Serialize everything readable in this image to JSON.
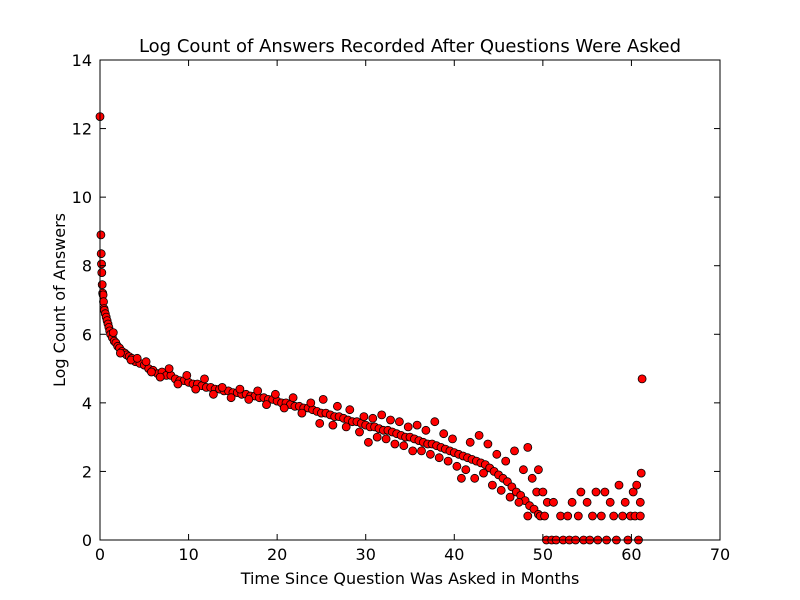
{
  "chart_data": {
    "type": "scatter",
    "title": "Log Count of Answers Recorded After Questions Were Asked",
    "xlabel": "Time Since Question Was Asked in Months",
    "ylabel": "Log Count of Answers",
    "xlim": [
      0,
      70
    ],
    "ylim": [
      0,
      14
    ],
    "xticks": [
      0,
      10,
      20,
      30,
      40,
      50,
      60,
      70
    ],
    "yticks": [
      0,
      2,
      4,
      6,
      8,
      10,
      12,
      14
    ],
    "grid": false,
    "legend": "none",
    "marker_color": "#ff0000",
    "marker_edge_color": "#000000",
    "series": [
      {
        "points": [
          [
            0.0,
            12.35
          ],
          [
            0.1,
            8.9
          ],
          [
            0.13,
            8.35
          ],
          [
            0.17,
            8.05
          ],
          [
            0.2,
            7.8
          ],
          [
            0.25,
            7.45
          ],
          [
            0.3,
            7.2
          ],
          [
            0.35,
            7.15
          ],
          [
            0.4,
            6.95
          ],
          [
            0.45,
            6.75
          ],
          [
            0.5,
            6.7
          ],
          [
            0.6,
            6.6
          ],
          [
            0.7,
            6.5
          ],
          [
            0.8,
            6.4
          ],
          [
            0.9,
            6.3
          ],
          [
            1.0,
            6.2
          ],
          [
            1.1,
            6.1
          ],
          [
            1.2,
            6.0
          ],
          [
            1.4,
            5.9
          ],
          [
            1.6,
            5.8
          ],
          [
            1.8,
            5.75
          ],
          [
            2.0,
            5.65
          ],
          [
            2.2,
            5.6
          ],
          [
            2.5,
            5.5
          ],
          [
            2.8,
            5.45
          ],
          [
            3.0,
            5.4
          ],
          [
            3.3,
            5.35
          ],
          [
            3.6,
            5.3
          ],
          [
            4.0,
            5.2
          ],
          [
            4.5,
            5.15
          ],
          [
            5.0,
            5.1
          ],
          [
            5.5,
            5.0
          ],
          [
            6.0,
            4.95
          ],
          [
            6.5,
            4.85
          ],
          [
            7.0,
            4.9
          ],
          [
            7.5,
            4.8
          ],
          [
            8.0,
            4.8
          ],
          [
            8.5,
            4.7
          ],
          [
            9.0,
            4.65
          ],
          [
            9.5,
            4.65
          ],
          [
            10.0,
            4.6
          ],
          [
            10.5,
            4.55
          ],
          [
            11.0,
            4.55
          ],
          [
            11.5,
            4.5
          ],
          [
            12.0,
            4.45
          ],
          [
            12.5,
            4.45
          ],
          [
            13.0,
            4.4
          ],
          [
            13.5,
            4.4
          ],
          [
            14.0,
            4.35
          ],
          [
            14.5,
            4.35
          ],
          [
            15.0,
            4.3
          ],
          [
            15.5,
            4.3
          ],
          [
            16.0,
            4.25
          ],
          [
            16.5,
            4.25
          ],
          [
            17.0,
            4.2
          ],
          [
            17.5,
            4.2
          ],
          [
            18.0,
            4.15
          ],
          [
            18.5,
            4.15
          ],
          [
            19.0,
            4.1
          ],
          [
            19.5,
            4.1
          ],
          [
            20.0,
            4.05
          ],
          [
            20.5,
            4.0
          ],
          [
            21.0,
            4.0
          ],
          [
            21.5,
            3.95
          ],
          [
            22.0,
            3.9
          ],
          [
            22.5,
            3.9
          ],
          [
            23.0,
            3.85
          ],
          [
            23.5,
            3.85
          ],
          [
            24.0,
            3.8
          ],
          [
            24.5,
            3.75
          ],
          [
            25.0,
            3.7
          ],
          [
            25.5,
            3.7
          ],
          [
            26.0,
            3.65
          ],
          [
            26.5,
            3.6
          ],
          [
            27.0,
            3.6
          ],
          [
            27.5,
            3.55
          ],
          [
            28.0,
            3.5
          ],
          [
            28.5,
            3.45
          ],
          [
            29.0,
            3.45
          ],
          [
            29.5,
            3.4
          ],
          [
            30.0,
            3.35
          ],
          [
            30.5,
            3.3
          ],
          [
            31.0,
            3.3
          ],
          [
            31.5,
            3.25
          ],
          [
            32.0,
            3.2
          ],
          [
            32.5,
            3.2
          ],
          [
            33.0,
            3.15
          ],
          [
            33.5,
            3.1
          ],
          [
            34.0,
            3.05
          ],
          [
            34.5,
            3.0
          ],
          [
            35.0,
            3.0
          ],
          [
            35.5,
            2.95
          ],
          [
            36.0,
            2.9
          ],
          [
            36.5,
            2.85
          ],
          [
            37.0,
            2.8
          ],
          [
            37.5,
            2.8
          ],
          [
            38.0,
            2.75
          ],
          [
            38.5,
            2.7
          ],
          [
            39.0,
            2.65
          ],
          [
            39.5,
            2.6
          ],
          [
            40.0,
            2.55
          ],
          [
            40.5,
            2.5
          ],
          [
            41.0,
            2.45
          ],
          [
            41.5,
            2.4
          ],
          [
            42.0,
            2.35
          ],
          [
            42.5,
            2.3
          ],
          [
            43.0,
            2.25
          ],
          [
            43.5,
            2.2
          ],
          [
            44.0,
            2.1
          ],
          [
            44.5,
            2.0
          ],
          [
            45.0,
            1.9
          ],
          [
            45.5,
            1.8
          ],
          [
            46.0,
            1.7
          ],
          [
            46.5,
            1.55
          ],
          [
            47.0,
            1.4
          ],
          [
            47.5,
            1.3
          ],
          [
            48.0,
            1.15
          ],
          [
            48.5,
            1.0
          ],
          [
            49.0,
            0.9
          ],
          [
            49.5,
            0.75
          ],
          [
            1.5,
            6.05
          ],
          [
            2.3,
            5.45
          ],
          [
            3.5,
            5.25
          ],
          [
            4.2,
            5.3
          ],
          [
            5.2,
            5.2
          ],
          [
            5.8,
            4.9
          ],
          [
            6.8,
            4.75
          ],
          [
            7.8,
            5.0
          ],
          [
            8.8,
            4.55
          ],
          [
            9.8,
            4.8
          ],
          [
            10.8,
            4.4
          ],
          [
            11.8,
            4.7
          ],
          [
            12.8,
            4.25
          ],
          [
            13.8,
            4.45
          ],
          [
            14.8,
            4.15
          ],
          [
            15.8,
            4.4
          ],
          [
            16.8,
            4.1
          ],
          [
            17.8,
            4.35
          ],
          [
            18.8,
            3.95
          ],
          [
            19.8,
            4.25
          ],
          [
            20.8,
            3.85
          ],
          [
            21.8,
            4.15
          ],
          [
            22.8,
            3.7
          ],
          [
            23.8,
            4.0
          ],
          [
            24.8,
            3.4
          ],
          [
            25.2,
            4.1
          ],
          [
            26.3,
            3.35
          ],
          [
            26.8,
            3.9
          ],
          [
            27.8,
            3.3
          ],
          [
            28.2,
            3.8
          ],
          [
            29.3,
            3.15
          ],
          [
            29.8,
            3.6
          ],
          [
            30.3,
            2.85
          ],
          [
            30.8,
            3.55
          ],
          [
            31.3,
            3.0
          ],
          [
            31.8,
            3.65
          ],
          [
            32.3,
            2.95
          ],
          [
            32.8,
            3.5
          ],
          [
            33.3,
            2.8
          ],
          [
            33.8,
            3.45
          ],
          [
            34.3,
            2.75
          ],
          [
            34.8,
            3.3
          ],
          [
            35.3,
            2.6
          ],
          [
            35.8,
            3.35
          ],
          [
            36.3,
            2.6
          ],
          [
            36.8,
            3.2
          ],
          [
            37.3,
            2.5
          ],
          [
            37.8,
            3.45
          ],
          [
            38.3,
            2.4
          ],
          [
            38.8,
            3.1
          ],
          [
            39.3,
            2.3
          ],
          [
            39.8,
            2.95
          ],
          [
            40.3,
            2.15
          ],
          [
            40.8,
            1.8
          ],
          [
            41.3,
            2.05
          ],
          [
            41.8,
            2.85
          ],
          [
            42.3,
            1.8
          ],
          [
            42.8,
            3.05
          ],
          [
            43.3,
            1.95
          ],
          [
            43.8,
            2.8
          ],
          [
            44.3,
            1.6
          ],
          [
            44.8,
            2.5
          ],
          [
            45.3,
            1.45
          ],
          [
            45.8,
            2.3
          ],
          [
            46.3,
            1.25
          ],
          [
            46.8,
            2.6
          ],
          [
            47.3,
            1.1
          ],
          [
            47.8,
            2.05
          ],
          [
            48.3,
            0.7
          ],
          [
            48.3,
            2.7
          ],
          [
            48.8,
            1.8
          ],
          [
            49.3,
            1.4
          ],
          [
            49.5,
            2.05
          ],
          [
            49.7,
            0.7
          ],
          [
            50.0,
            1.4
          ],
          [
            50.2,
            0.7
          ],
          [
            50.4,
            0.0
          ],
          [
            50.5,
            1.1
          ],
          [
            51.0,
            0.0
          ],
          [
            51.2,
            1.1
          ],
          [
            51.5,
            0.0
          ],
          [
            52.0,
            0.7
          ],
          [
            52.3,
            0.0
          ],
          [
            52.8,
            0.7
          ],
          [
            53.0,
            0.0
          ],
          [
            53.3,
            1.1
          ],
          [
            53.7,
            0.0
          ],
          [
            54.0,
            0.7
          ],
          [
            54.3,
            1.4
          ],
          [
            54.6,
            0.0
          ],
          [
            55.0,
            1.1
          ],
          [
            55.3,
            0.0
          ],
          [
            55.6,
            0.7
          ],
          [
            56.0,
            1.4
          ],
          [
            56.2,
            0.0
          ],
          [
            56.6,
            0.7
          ],
          [
            57.0,
            1.4
          ],
          [
            57.2,
            0.0
          ],
          [
            57.6,
            1.1
          ],
          [
            58.0,
            0.7
          ],
          [
            58.3,
            0.0
          ],
          [
            58.6,
            1.6
          ],
          [
            59.0,
            0.7
          ],
          [
            59.3,
            1.1
          ],
          [
            59.6,
            0.0
          ],
          [
            59.9,
            0.7
          ],
          [
            60.2,
            1.4
          ],
          [
            60.4,
            0.7
          ],
          [
            60.6,
            1.6
          ],
          [
            60.8,
            0.0
          ],
          [
            61.0,
            1.1
          ],
          [
            61.1,
            1.95
          ],
          [
            61.2,
            4.7
          ],
          [
            61.0,
            0.7
          ]
        ]
      }
    ]
  }
}
